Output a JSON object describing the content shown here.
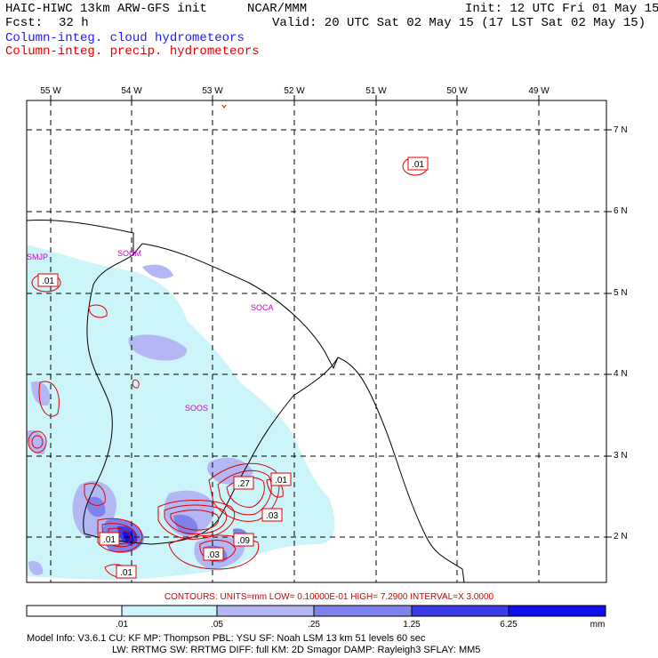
{
  "header": {
    "title": "HAIC-HIWC 13km ARW-GFS init",
    "org": "NCAR/MMM",
    "init": "Init: 12 UTC Fri 01 May 15",
    "fcst_label": "Fcst:",
    "fcst_value": "32 h",
    "valid": "Valid: 20 UTC Sat 02 May 15 (17 LST Sat 02 May 15)",
    "field1": "Column-integ. cloud hydrometeors",
    "field2": "Column-integ. precip. hydrometeors"
  },
  "map": {
    "lon_labels": [
      "55 W",
      "54 W",
      "53 W",
      "52 W",
      "51 W",
      "50 W",
      "49 W"
    ],
    "lat_labels": [
      "7 N",
      "6 N",
      "5 N",
      "4 N",
      "3 N",
      "2 N"
    ],
    "stations": [
      "SMJP",
      "SOCM",
      "SOCA",
      "SOOS"
    ],
    "contour_labels": [
      ".01",
      ".01",
      ".27",
      ".01",
      ".03",
      ".01",
      ".03",
      ".09",
      ".01"
    ],
    "colors": {
      "cloud_shades": [
        "#ffffff",
        "#ccf5fa",
        "#b3b8f4",
        "#7f82ea",
        "#3c3ce8",
        "#1010ef"
      ],
      "precip_contour": "#e00000",
      "station": "#cc00cc",
      "coast": "#000000"
    }
  },
  "colorbar": {
    "ticks": [
      ".01",
      ".05",
      ".25",
      "1.25",
      "6.25"
    ],
    "units": "mm",
    "contour_info": "CONTOURS:  UNITS=mm   LOW= 0.10000E-01   HIGH=  7.2900     INTERVAL=X  3.0000"
  },
  "footer": {
    "line1": "Model Info: V3.6.1     CU: KF      MP: Thompson     PBL: YSU      SF: Noah LSM     13 km    51 levels   60 sec",
    "line2": "LW: RRTMG    SW: RRTMG   DIFF: full    KM: 2D Smagor DAMP: Rayleigh3   SFLAY: MM5"
  }
}
